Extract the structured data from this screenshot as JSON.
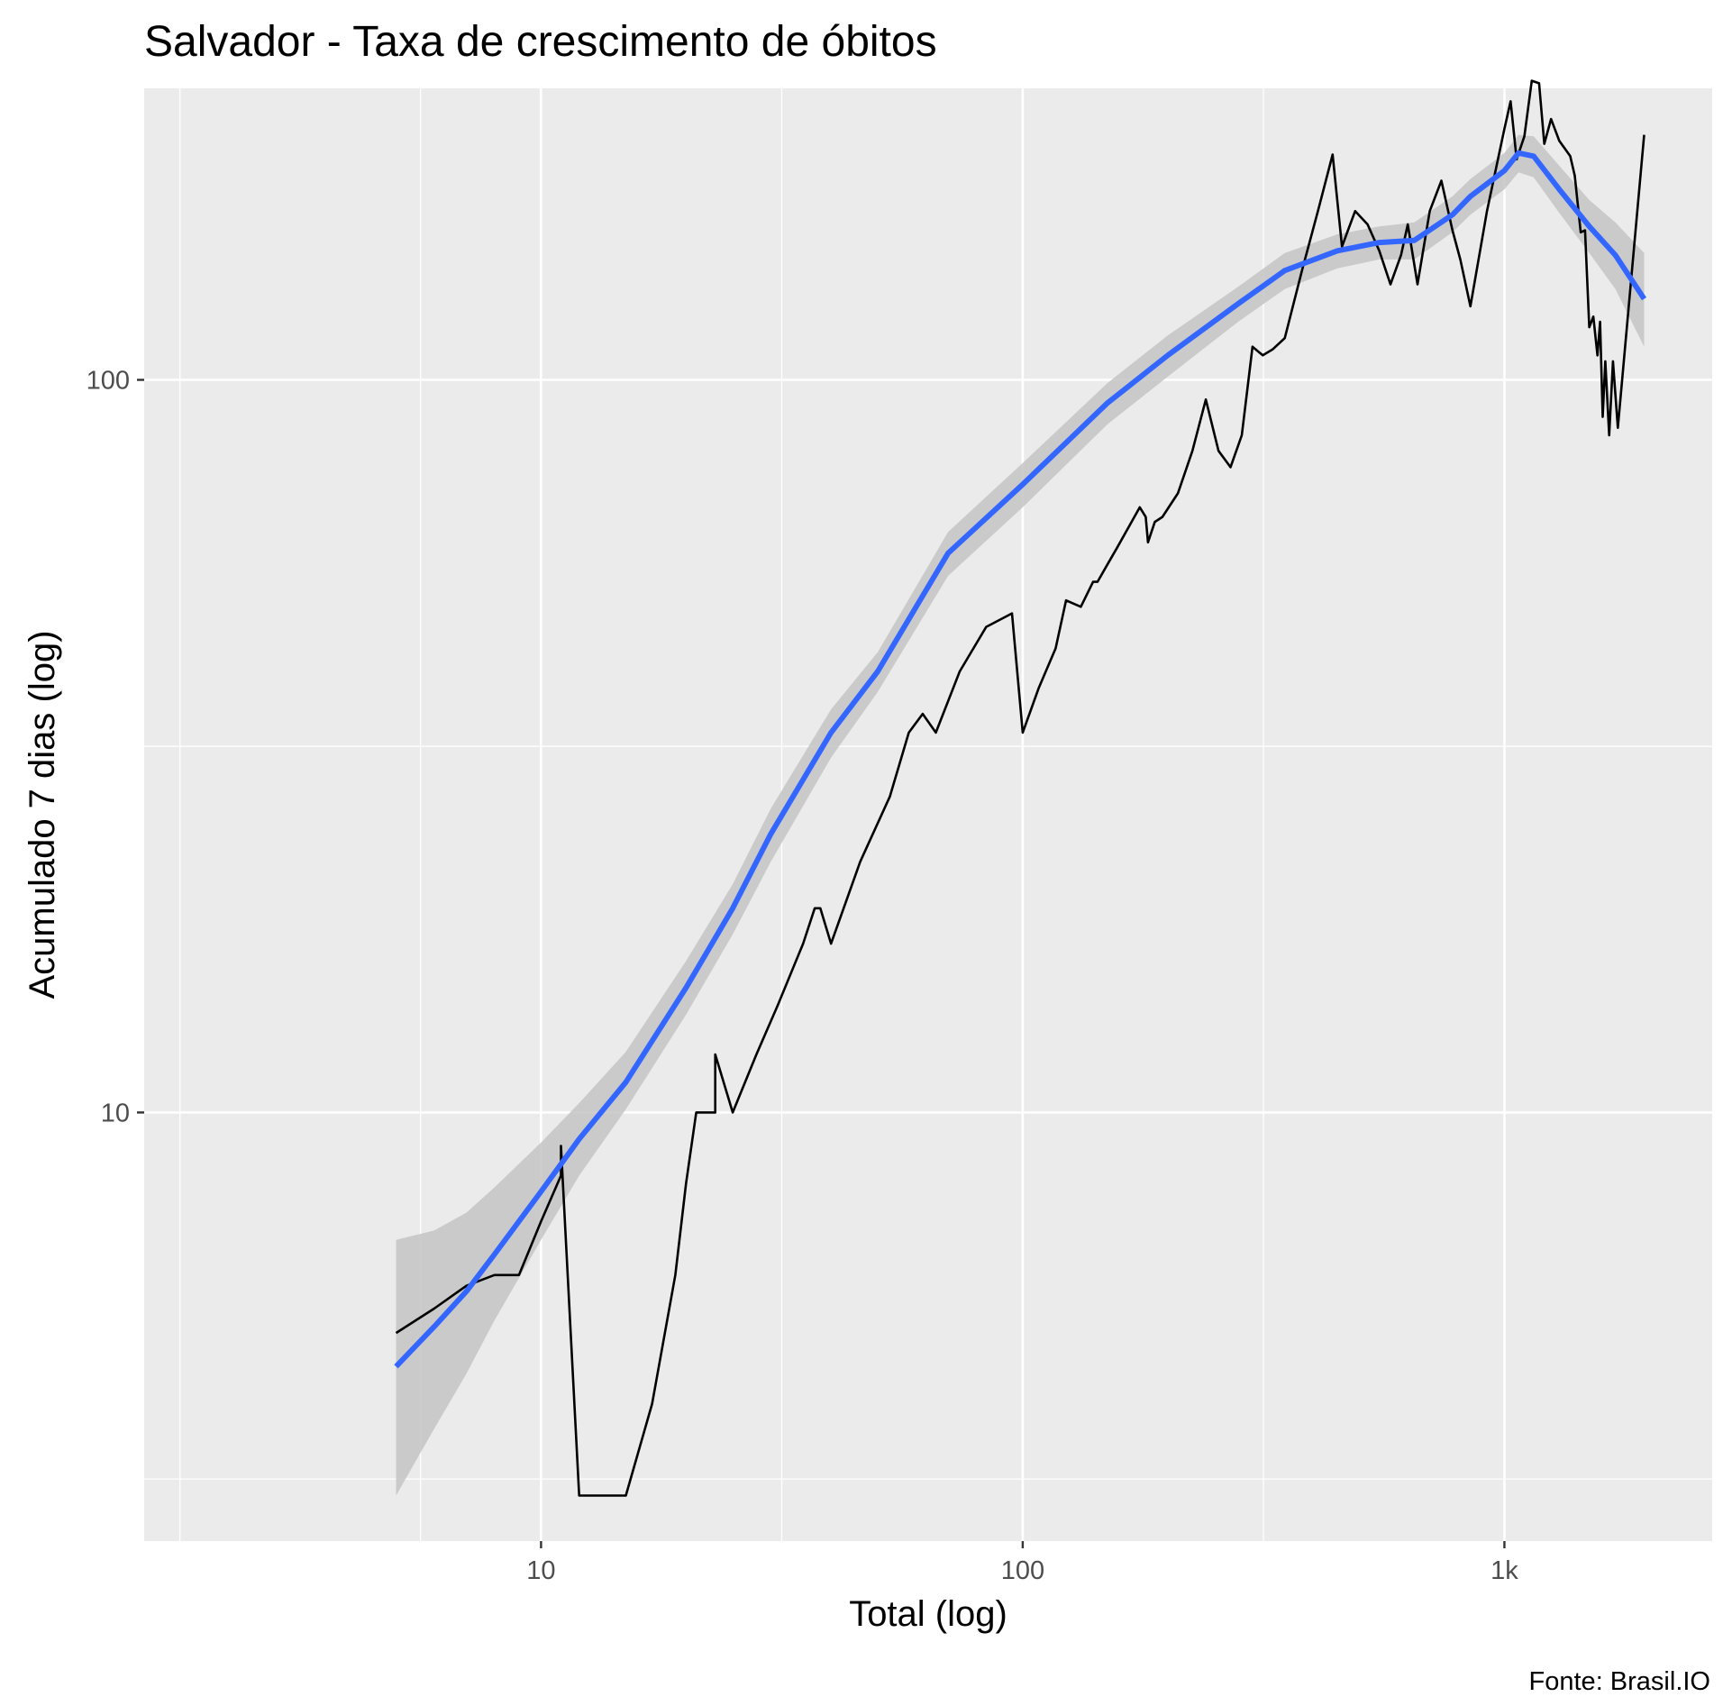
{
  "chart_data": {
    "type": "line",
    "title": "Salvador - Taxa de crescimento de óbitos",
    "xlabel": "Total (log)",
    "ylabel": "Acumulado 7 dias (log)",
    "caption": "Fonte: Brasil.IO",
    "x_scale": "log10",
    "y_scale": "log10",
    "xlim": [
      1.5,
      2700
    ],
    "ylim": [
      2.6,
      250
    ],
    "x_ticks": [
      {
        "value": 10,
        "label": "10"
      },
      {
        "value": 100,
        "label": "100"
      },
      {
        "value": 1000,
        "label": "1k"
      }
    ],
    "y_ticks": [
      {
        "value": 10,
        "label": "10"
      },
      {
        "value": 100,
        "label": "100"
      }
    ],
    "x_minor_grid": [
      1.78,
      5.62,
      31.6,
      316,
      3160
    ],
    "y_minor_grid": [
      3.16,
      31.6
    ],
    "grid": true,
    "legend": "none",
    "colors": {
      "panel": "#ebebeb",
      "grid": "#ffffff",
      "observed": "#000000",
      "smooth": "#3366ff",
      "band": "#c4c4c4"
    },
    "series": [
      {
        "kind": "observed",
        "x": [
          5,
          6,
          7,
          8,
          9,
          10,
          11,
          11,
          12,
          13,
          15,
          17,
          19,
          20,
          21,
          23,
          23,
          25,
          28,
          31,
          35,
          37,
          38,
          40,
          46,
          53,
          58,
          62,
          66,
          74,
          84,
          95,
          100,
          108,
          117,
          123,
          132,
          140,
          143,
          150,
          157,
          175,
          180,
          182,
          188,
          195,
          210,
          225,
          240,
          255,
          270,
          285,
          300,
          315,
          330,
          350,
          380,
          410,
          440,
          460,
          470,
          490,
          520,
          550,
          580,
          610,
          630,
          660,
          700,
          740,
          780,
          810,
          850,
          920,
          1000,
          1030,
          1060,
          1100,
          1140,
          1180,
          1210,
          1250,
          1300,
          1370,
          1400,
          1440,
          1470,
          1500,
          1530,
          1560,
          1580,
          1600,
          1620,
          1650,
          1680,
          1720,
          1950
        ],
        "y": [
          5,
          5.4,
          5.8,
          6,
          6,
          7.1,
          8.2,
          9,
          3,
          3,
          3,
          4,
          6,
          8,
          10,
          10,
          12,
          10,
          12,
          14,
          17,
          19,
          19,
          17,
          22,
          27,
          33,
          35,
          33,
          40,
          46,
          48,
          33,
          38,
          43,
          50,
          49,
          53,
          53,
          56,
          59,
          67,
          65,
          60,
          64,
          65,
          70,
          80,
          94,
          80,
          76,
          84,
          111,
          108,
          110,
          114,
          141,
          170,
          203,
          152,
          158,
          170,
          163,
          150,
          135,
          148,
          163,
          135,
          170,
          187,
          160,
          146,
          126,
          170,
          220,
          240,
          200,
          215,
          256,
          254,
          210,
          227,
          212,
          202,
          190,
          159,
          160,
          118,
          122,
          108,
          120,
          89,
          106,
          84,
          106,
          86,
          216
        ]
      },
      {
        "kind": "smooth",
        "x": [
          5,
          6,
          7,
          8,
          10,
          12,
          15,
          20,
          25,
          30,
          40,
          50,
          70,
          100,
          150,
          200,
          280,
          350,
          450,
          550,
          650,
          780,
          850,
          1000,
          1070,
          1150,
          1300,
          1500,
          1700,
          1950
        ],
        "y": [
          4.5,
          5.1,
          5.7,
          6.4,
          7.8,
          9.2,
          11,
          14.8,
          19,
          24,
          33,
          40,
          58,
          72,
          93,
          108,
          127,
          141,
          150,
          154,
          155,
          168,
          178,
          193,
          204,
          202,
          182,
          162,
          148,
          129
        ],
        "band_low": [
          3,
          3.7,
          4.4,
          5.2,
          6.7,
          8.2,
          10.1,
          13.6,
          17.5,
          22,
          30.5,
          37.5,
          54,
          67,
          87,
          101,
          120,
          133,
          142,
          146,
          146,
          159,
          168,
          182,
          192,
          189,
          169,
          149,
          133,
          111
        ],
        "band_high": [
          6.7,
          6.9,
          7.3,
          7.9,
          9.1,
          10.3,
          12.1,
          16.1,
          20.5,
          26,
          35.5,
          42.5,
          62,
          77,
          99,
          115,
          134,
          149,
          158,
          162,
          164,
          178,
          188,
          204,
          216,
          215,
          196,
          176,
          164,
          149
        ]
      }
    ]
  }
}
